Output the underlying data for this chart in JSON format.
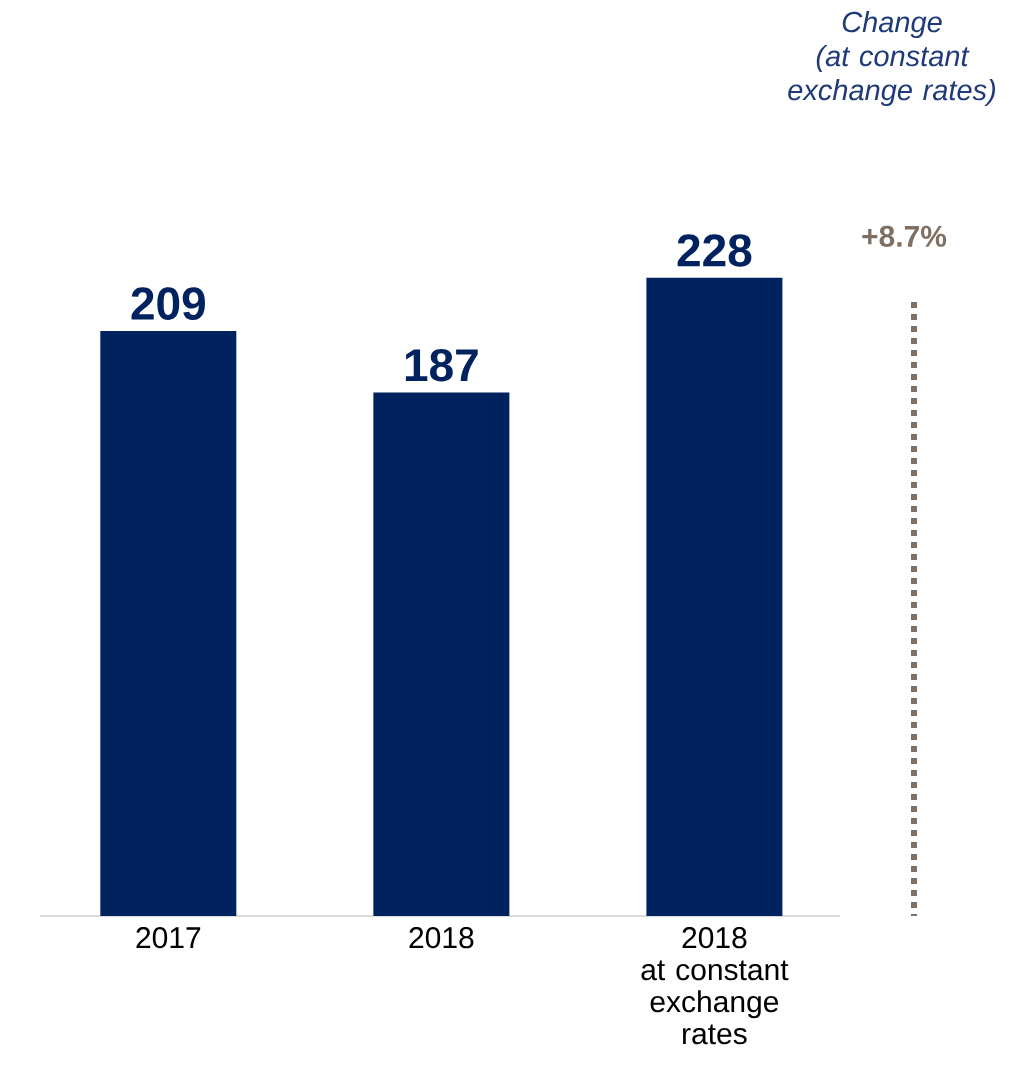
{
  "chart_data": {
    "type": "bar",
    "categories": [
      "2017",
      "2018",
      "2018\nat constant\nexchange\nrates"
    ],
    "values": [
      209,
      187,
      228
    ],
    "color": "#00225f",
    "data_labels": true,
    "annotations": [
      "Change\n(at constant\nexchange rates)",
      "+8.7%"
    ]
  }
}
